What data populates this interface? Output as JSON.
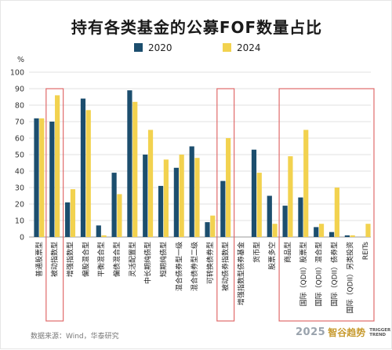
{
  "title": "持有各类基金的公募FOF数量占比",
  "source": "数据来源：Wind，华泰研究",
  "brand": {
    "year": "2025",
    "name": "智谷趋势",
    "sub_line1": "TRIGGER",
    "sub_line2": "TREND"
  },
  "colors": {
    "s2020": "#1c4e6e",
    "s2024": "#f2d24f",
    "highlight": "#e06a6a",
    "grid": "#d9d9d9",
    "axis": "#999999"
  },
  "chart_data": {
    "type": "bar",
    "ylabel": "%",
    "ylim": [
      0,
      100
    ],
    "yticks": [
      0,
      10,
      20,
      30,
      40,
      50,
      60,
      70,
      80,
      90,
      100
    ],
    "legend": "top-center",
    "categories": [
      "普通股票型",
      "被动指数型",
      "增强指数型",
      "偏股混合型",
      "平衡混合型",
      "偏债混合型",
      "灵活配置型",
      "中长期纯债型",
      "短期纯债型",
      "混合债券型一级",
      "混合债券型二级",
      "可转换债券型",
      "被动债券指数型",
      "增强指数型债券基金",
      "货币型",
      "股票多空",
      "商品型",
      "国际（QDII）股票型",
      "国际（QDII）混合型",
      "国际（QDII）债券型",
      "国际（QDII）另类投资",
      "REITs"
    ],
    "series": [
      {
        "name": "2020",
        "values": [
          72,
          70,
          21,
          84,
          7,
          39,
          89,
          50,
          31,
          42,
          55,
          9,
          34,
          0,
          53,
          25,
          19,
          24,
          6,
          3,
          1,
          0
        ]
      },
      {
        "name": "2024",
        "values": [
          72,
          86,
          29,
          77,
          1,
          26,
          82,
          65,
          47,
          50,
          48,
          13,
          60,
          0,
          39,
          8,
          49,
          65,
          8,
          30,
          1,
          8
        ]
      }
    ],
    "highlight_groups": [
      [
        1,
        1
      ],
      [
        12,
        12
      ],
      [
        16,
        21
      ]
    ]
  }
}
